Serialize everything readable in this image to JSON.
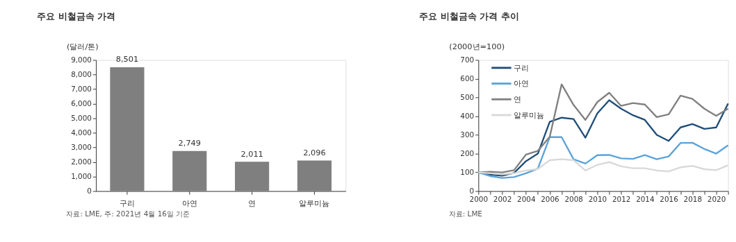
{
  "chart_data": [
    {
      "type": "bar",
      "title": "주요 비철금속 가격",
      "ylabel": "(달러/톤)",
      "categories": [
        "구리",
        "아연",
        "연",
        "알루미늄"
      ],
      "values": [
        8501,
        2749,
        2011,
        2096
      ],
      "value_labels": [
        "8,501",
        "2,749",
        "2,011",
        "2,096"
      ],
      "color": "#7f7f7f",
      "ylim": [
        0,
        9000
      ],
      "yticks": [
        0,
        {
          "value": 1000,
          "label": "1,000"
        },
        {
          "value": 2000,
          "label": "2,000"
        },
        {
          "value": 3000,
          "label": "3,000"
        },
        {
          "value": 4000,
          "label": "4,000"
        },
        {
          "value": 5000,
          "label": "5,000"
        },
        {
          "value": 6000,
          "label": "6,000"
        },
        {
          "value": 7000,
          "label": "7,000"
        },
        {
          "value": 8000,
          "label": "8,000"
        },
        {
          "value": 9000,
          "label": "9,000"
        }
      ],
      "grid": false,
      "annotations": [
        "자료: LME, 주: 2021년 4월 16일 기준"
      ]
    },
    {
      "type": "line",
      "title": "주요 비철금속 가격 추이",
      "ylabel": "(2000년=100)",
      "x": [
        2000,
        2001,
        2002,
        2003,
        2004,
        2005,
        2006,
        2007,
        2008,
        2009,
        2010,
        2011,
        2012,
        2013,
        2014,
        2015,
        2016,
        2017,
        2018,
        2019,
        2020,
        2021
      ],
      "series": [
        {
          "name": "구리",
          "color": "#1f4e79",
          "values": [
            100,
            88,
            82,
            97,
            160,
            200,
            370,
            392,
            385,
            285,
            415,
            485,
            440,
            405,
            380,
            300,
            268,
            340,
            358,
            332,
            340,
            468
          ]
        },
        {
          "name": "아연",
          "color": "#5ba3d9",
          "values": [
            100,
            80,
            70,
            75,
            95,
            120,
            288,
            288,
            170,
            147,
            192,
            193,
            175,
            172,
            192,
            170,
            185,
            257,
            258,
            225,
            200,
            245
          ]
        },
        {
          "name": "연",
          "color": "#808080",
          "values": [
            100,
            103,
            100,
            112,
            195,
            215,
            290,
            570,
            460,
            380,
            475,
            525,
            455,
            470,
            462,
            395,
            410,
            510,
            492,
            440,
            402,
            440
          ]
        },
        {
          "name": "알루미늄",
          "color": "#d9d9d9",
          "values": [
            100,
            95,
            90,
            95,
            110,
            118,
            165,
            170,
            165,
            110,
            140,
            155,
            132,
            122,
            122,
            110,
            105,
            127,
            135,
            117,
            112,
            138
          ]
        }
      ],
      "xlim": [
        2000,
        2021
      ],
      "xticks": [
        2000,
        {
          "value": 2001,
          "label": null
        },
        2002,
        {
          "value": 2003,
          "label": null
        },
        2004,
        {
          "value": 2005,
          "label": null
        },
        2006,
        {
          "value": 2007,
          "label": null
        },
        2008,
        {
          "value": 2009,
          "label": null
        },
        2010,
        {
          "value": 2011,
          "label": null
        },
        2012,
        {
          "value": 2013,
          "label": null
        },
        2014,
        {
          "value": 2015,
          "label": null
        },
        2016,
        {
          "value": 2017,
          "label": null
        },
        2018,
        {
          "value": 2019,
          "label": null
        },
        2020,
        {
          "value": 2021,
          "label": null
        }
      ],
      "ylim": [
        0,
        700
      ],
      "yticks": [
        0,
        100,
        200,
        300,
        400,
        500,
        600,
        700
      ],
      "grid": false,
      "legend": "top left",
      "marker": "none",
      "line_style": "solid",
      "annotations": [
        "자료: LME"
      ]
    }
  ]
}
